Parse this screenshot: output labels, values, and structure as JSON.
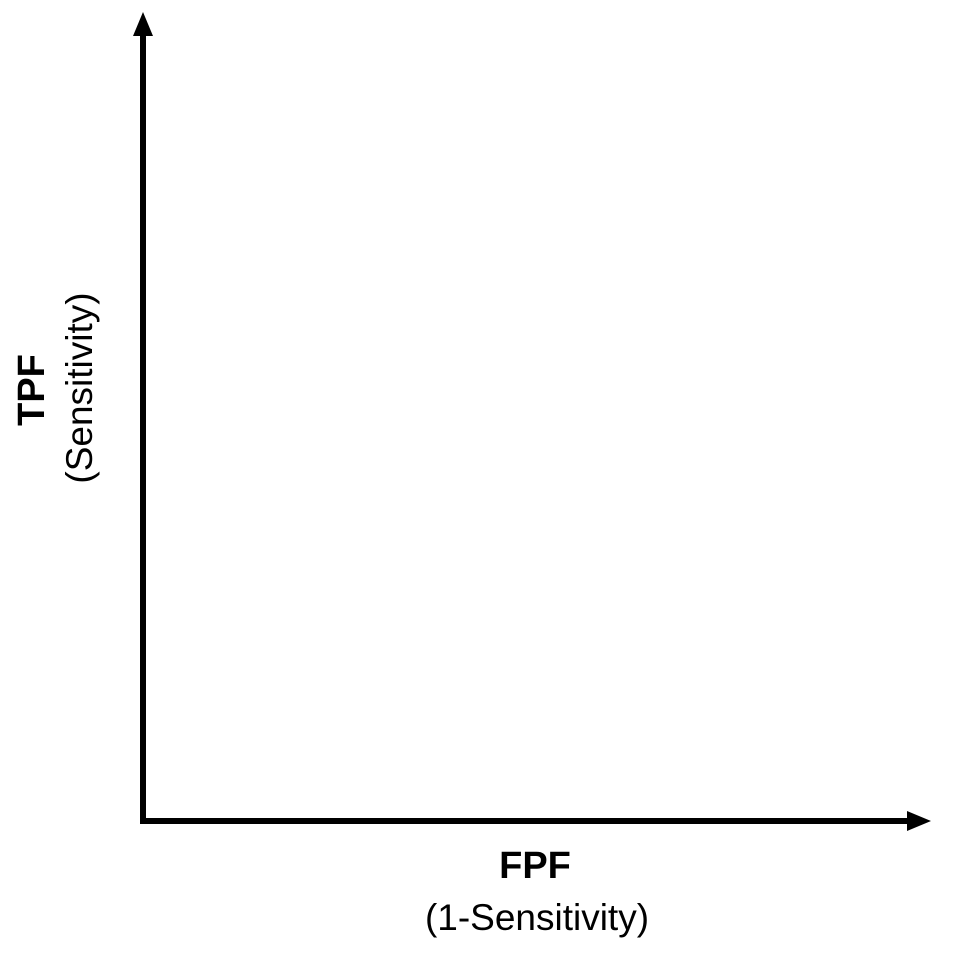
{
  "chart_data": {
    "type": "line",
    "title": "",
    "xlabel": "FPF",
    "xlabel_sub": "(1-Sensitivity)",
    "ylabel": "TPF",
    "ylabel_sub": "(Sensitivity)",
    "series": [],
    "grid": false,
    "axis_color": "#000000"
  }
}
